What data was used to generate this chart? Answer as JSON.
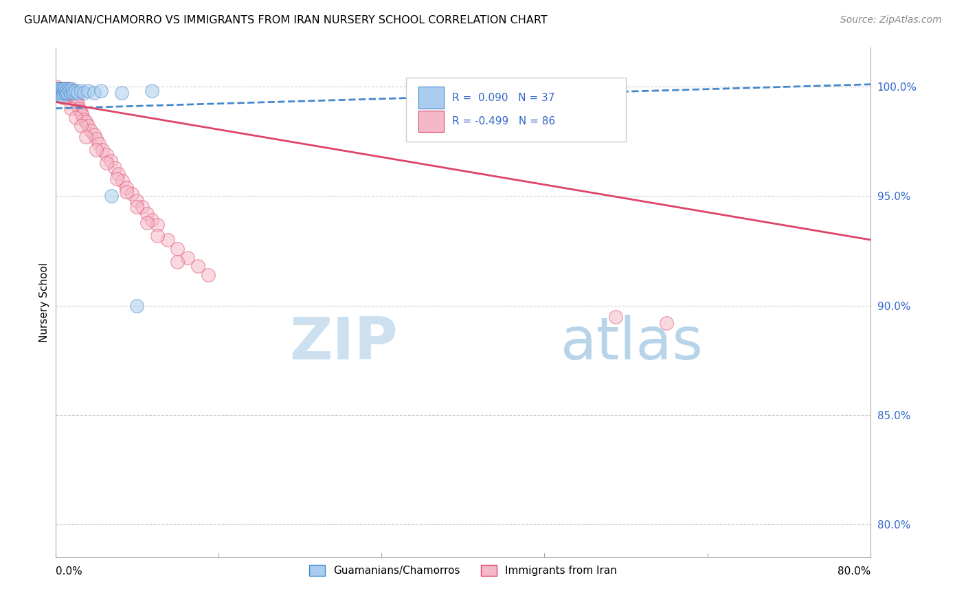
{
  "title": "GUAMANIAN/CHAMORRO VS IMMIGRANTS FROM IRAN NURSERY SCHOOL CORRELATION CHART",
  "source": "Source: ZipAtlas.com",
  "ylabel": "Nursery School",
  "right_yticks": [
    "100.0%",
    "95.0%",
    "90.0%",
    "85.0%",
    "80.0%"
  ],
  "right_ytick_vals": [
    1.0,
    0.95,
    0.9,
    0.85,
    0.8
  ],
  "blue_color": "#aaccee",
  "pink_color": "#f5b8c8",
  "trend_blue_color": "#4488cc",
  "trend_pink_color": "#dd4466",
  "watermark_zip_color": "#cce0f0",
  "watermark_atlas_color": "#b8d4e8",
  "xmin": 0.0,
  "xmax": 0.8,
  "ymin": 0.785,
  "ymax": 1.018,
  "blue_trend_x0": 0.0,
  "blue_trend_y0": 0.99,
  "blue_trend_x1": 0.8,
  "blue_trend_y1": 1.001,
  "pink_trend_x0": 0.0,
  "pink_trend_y0": 0.993,
  "pink_trend_x1": 0.8,
  "pink_trend_y1": 0.93,
  "blue_x": [
    0.001,
    0.002,
    0.002,
    0.003,
    0.003,
    0.004,
    0.004,
    0.005,
    0.005,
    0.006,
    0.006,
    0.007,
    0.007,
    0.008,
    0.008,
    0.009,
    0.01,
    0.01,
    0.011,
    0.012,
    0.013,
    0.014,
    0.015,
    0.016,
    0.017,
    0.018,
    0.02,
    0.022,
    0.025,
    0.028,
    0.032,
    0.038,
    0.045,
    0.055,
    0.065,
    0.08,
    0.095
  ],
  "blue_y": [
    0.998,
    0.997,
    0.999,
    0.996,
    0.998,
    0.997,
    0.999,
    0.998,
    0.996,
    0.997,
    0.999,
    0.998,
    0.996,
    0.997,
    0.999,
    0.998,
    0.997,
    0.999,
    0.998,
    0.997,
    0.999,
    0.998,
    0.997,
    0.999,
    0.998,
    0.997,
    0.998,
    0.997,
    0.998,
    0.997,
    0.998,
    0.997,
    0.998,
    0.95,
    0.997,
    0.9,
    0.998
  ],
  "pink_x": [
    0.001,
    0.001,
    0.002,
    0.002,
    0.003,
    0.003,
    0.004,
    0.004,
    0.005,
    0.005,
    0.006,
    0.006,
    0.007,
    0.007,
    0.008,
    0.008,
    0.009,
    0.009,
    0.01,
    0.01,
    0.011,
    0.011,
    0.012,
    0.012,
    0.013,
    0.013,
    0.014,
    0.014,
    0.015,
    0.015,
    0.016,
    0.016,
    0.017,
    0.017,
    0.018,
    0.018,
    0.019,
    0.02,
    0.02,
    0.021,
    0.022,
    0.023,
    0.024,
    0.025,
    0.026,
    0.028,
    0.03,
    0.032,
    0.035,
    0.038,
    0.04,
    0.043,
    0.046,
    0.05,
    0.054,
    0.058,
    0.062,
    0.066,
    0.07,
    0.075,
    0.08,
    0.085,
    0.09,
    0.095,
    0.1,
    0.11,
    0.12,
    0.13,
    0.14,
    0.15,
    0.004,
    0.008,
    0.015,
    0.02,
    0.025,
    0.03,
    0.04,
    0.05,
    0.06,
    0.07,
    0.08,
    0.09,
    0.1,
    0.12,
    0.55,
    0.6
  ],
  "pink_y": [
    0.998,
    1.0,
    0.999,
    0.997,
    0.998,
    0.999,
    0.997,
    0.999,
    0.998,
    0.997,
    0.998,
    0.999,
    0.997,
    0.999,
    0.998,
    0.997,
    0.998,
    0.999,
    0.997,
    0.999,
    0.998,
    0.997,
    0.998,
    0.999,
    0.997,
    0.998,
    0.997,
    0.999,
    0.998,
    0.997,
    0.998,
    0.996,
    0.997,
    0.998,
    0.996,
    0.997,
    0.995,
    0.996,
    0.994,
    0.993,
    0.992,
    0.99,
    0.989,
    0.988,
    0.987,
    0.985,
    0.984,
    0.982,
    0.98,
    0.978,
    0.976,
    0.974,
    0.971,
    0.969,
    0.966,
    0.963,
    0.96,
    0.957,
    0.954,
    0.951,
    0.948,
    0.945,
    0.942,
    0.939,
    0.937,
    0.93,
    0.926,
    0.922,
    0.918,
    0.914,
    0.998,
    0.995,
    0.99,
    0.986,
    0.982,
    0.977,
    0.971,
    0.965,
    0.958,
    0.952,
    0.945,
    0.938,
    0.932,
    0.92,
    0.895,
    0.892
  ]
}
